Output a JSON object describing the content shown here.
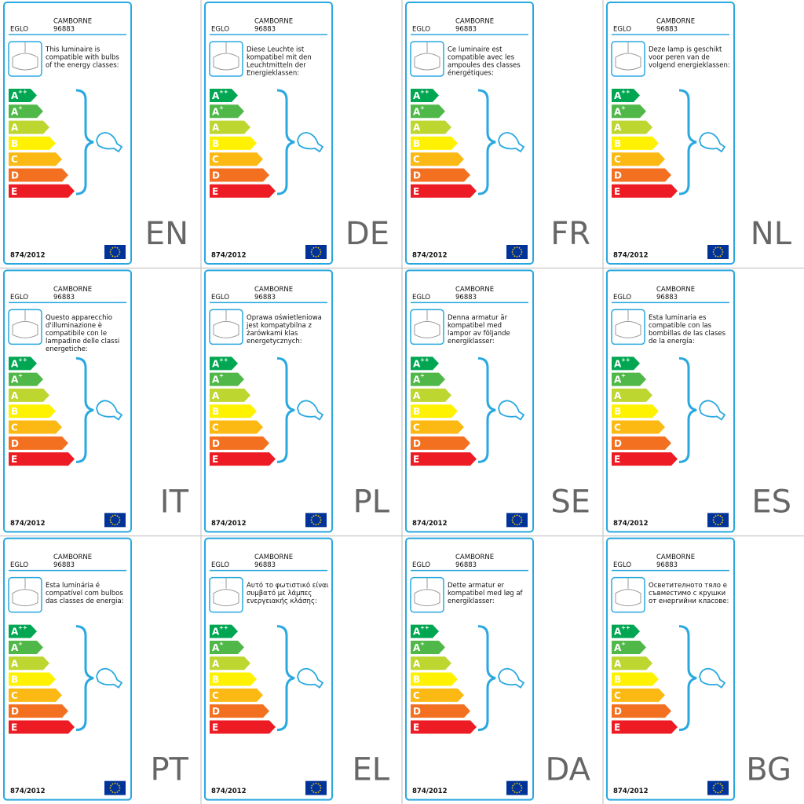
{
  "brand": "EGLO",
  "product": "CAMBORNE",
  "model": "96883",
  "regulation": "874/2012",
  "classes": [
    {
      "base": "A",
      "sup": "++"
    },
    {
      "base": "A",
      "sup": "+"
    },
    {
      "base": "A",
      "sup": ""
    },
    {
      "base": "B",
      "sup": ""
    },
    {
      "base": "C",
      "sup": ""
    },
    {
      "base": "D",
      "sup": ""
    },
    {
      "base": "E",
      "sup": ""
    }
  ],
  "panels": [
    {
      "code": "EN",
      "description": [
        "This luminaire is",
        "compatible with bulbs",
        "of the energy classes:"
      ]
    },
    {
      "code": "DE",
      "description": [
        "Diese Leuchte ist",
        "kompatibel mit den",
        "Leuchtmitteln der",
        "Energieklassen:"
      ]
    },
    {
      "code": "FR",
      "description": [
        "Ce luminaire est",
        "compatible avec les",
        "ampoules des classes",
        "énergétiques:"
      ]
    },
    {
      "code": "NL",
      "description": [
        "Deze lamp is geschikt",
        "voor peren van de",
        "volgend energieklassen:"
      ]
    },
    {
      "code": "IT",
      "description": [
        "Questo apparecchio",
        "d'illuminazione è",
        "compatibile con le",
        "lampadine delle classi",
        "energetiche:"
      ]
    },
    {
      "code": "PL",
      "description": [
        "Oprawa oświetleniowa",
        "jest kompatybilna z",
        "żarówkami klas",
        "energetycznych:"
      ]
    },
    {
      "code": "SE",
      "description": [
        "Denna armatur är",
        "kompatibel med",
        "lampor av följande",
        "energiklasser:"
      ]
    },
    {
      "code": "ES",
      "description": [
        "Esta luminaria es",
        "compatible con las",
        "bombillas de las clases",
        "de la energía:"
      ]
    },
    {
      "code": "PT",
      "description": [
        "Esta luminária é",
        "compatível com bulbos",
        "das classes de energia:"
      ]
    },
    {
      "code": "EL",
      "description": [
        "Αυτό το φωτιστικό είναι",
        "συμβατό με λάμπες",
        "ενεργειακής κλάσης:"
      ]
    },
    {
      "code": "DA",
      "description": [
        "Dette armatur er",
        "kompatibel med løg af",
        "energiklasser:"
      ]
    },
    {
      "code": "BG",
      "description": [
        "Осветителното тяло е",
        "съвместимо с крушки",
        "от енергийни класове:"
      ]
    }
  ]
}
